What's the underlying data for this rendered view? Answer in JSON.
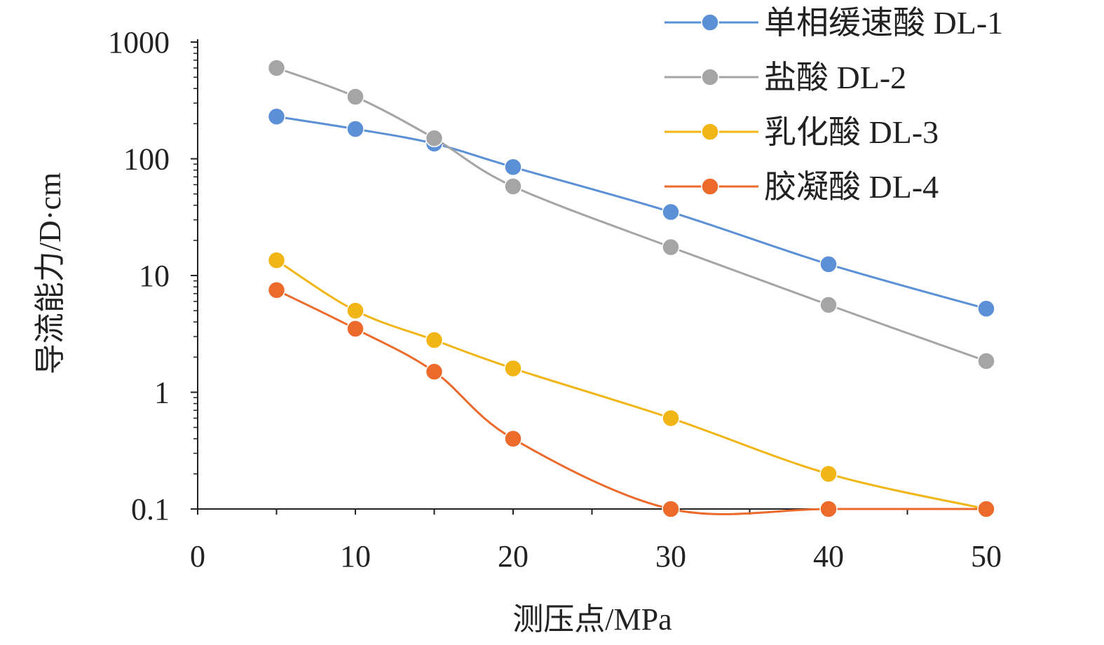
{
  "chart_data": {
    "type": "line",
    "title": "",
    "xlabel": "测压点/MPa",
    "ylabel": "导流能力/D·cm",
    "x_ticks": [
      0,
      10,
      20,
      30,
      40,
      50
    ],
    "y_ticks": [
      "0.1",
      "1",
      "10",
      "100",
      "1000"
    ],
    "y_scale": "log",
    "xlim": [
      0,
      50
    ],
    "ylim": [
      0.1,
      1000
    ],
    "grid": false,
    "legend_position": "top-right",
    "x": [
      5,
      10,
      15,
      20,
      30,
      40,
      50
    ],
    "series": [
      {
        "name": "单相缓速酸 DL-1",
        "color": "#5b8fd6",
        "values": [
          230,
          180,
          135,
          85,
          35,
          12.5,
          5.2
        ]
      },
      {
        "name": "盐酸 DL-2",
        "color": "#a5a5a5",
        "values": [
          600,
          340,
          150,
          58,
          17.5,
          5.6,
          1.85
        ]
      },
      {
        "name": "乳化酸 DL-3",
        "color": "#f2b516",
        "values": [
          13.5,
          5,
          2.8,
          1.6,
          0.6,
          0.2,
          0.1
        ]
      },
      {
        "name": "胶凝酸 DL-4",
        "color": "#ec6a2c",
        "values": [
          7.5,
          3.5,
          1.5,
          0.4,
          0.1,
          0.1,
          0.1
        ]
      }
    ]
  }
}
